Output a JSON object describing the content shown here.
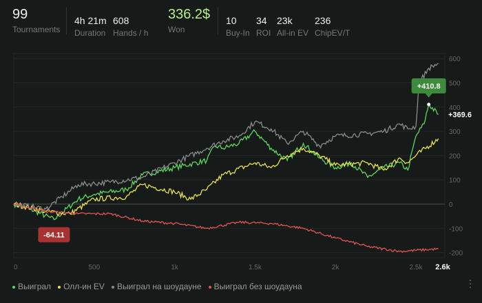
{
  "stats": [
    {
      "value": "99",
      "label": "Tournaments"
    },
    {
      "value": "4h 21m",
      "label": "Duration"
    },
    {
      "value": "608",
      "label": "Hands / h"
    },
    {
      "value": "336.2$",
      "label": "Won"
    },
    {
      "value": "10",
      "label": "Buy-In"
    },
    {
      "value": "34",
      "label": "ROI"
    },
    {
      "value": "23k",
      "label": "All-in EV"
    },
    {
      "value": "236",
      "label": "ChipEV/T"
    }
  ],
  "colors": {
    "won": "#b5f08a",
    "green": "#5fd85f",
    "yellow": "#ece44a",
    "gray": "#8c8c8c",
    "red": "#e85454",
    "tooltip": "#3d8a3d",
    "minbadge": "#a83232"
  },
  "chart_data": {
    "type": "line",
    "x_ticks": [
      "0",
      "500",
      "1k",
      "1.5k",
      "2k",
      "2.5k"
    ],
    "x_tick_values": [
      0,
      500,
      1000,
      1500,
      2000,
      2500
    ],
    "x_end_label": "2.6k",
    "y_ticks": [
      "600",
      "500",
      "400",
      "300",
      "200",
      "100",
      "0",
      "-100",
      "-200"
    ],
    "y_tick_values": [
      600,
      500,
      400,
      300,
      200,
      100,
      0,
      -100,
      -200
    ],
    "xlim": [
      0,
      2640
    ],
    "ylim": [
      -210,
      620
    ],
    "max_label": "+410.8",
    "max_point": [
      2580,
      410.8
    ],
    "min_label": "-64.11",
    "min_point": [
      250,
      -64.11
    ],
    "end_label": "+369.6",
    "series": [
      {
        "name": "Выиграл",
        "color": "#5fd85f",
        "points": [
          [
            0,
            0
          ],
          [
            100,
            -20
          ],
          [
            250,
            -64
          ],
          [
            400,
            20
          ],
          [
            500,
            40
          ],
          [
            700,
            60
          ],
          [
            800,
            120
          ],
          [
            1000,
            150
          ],
          [
            1200,
            180
          ],
          [
            1250,
            240
          ],
          [
            1300,
            230
          ],
          [
            1400,
            250
          ],
          [
            1500,
            300
          ],
          [
            1600,
            230
          ],
          [
            1700,
            180
          ],
          [
            1800,
            250
          ],
          [
            1900,
            190
          ],
          [
            2000,
            150
          ],
          [
            2100,
            170
          ],
          [
            2200,
            110
          ],
          [
            2300,
            150
          ],
          [
            2400,
            170
          ],
          [
            2450,
            140
          ],
          [
            2500,
            280
          ],
          [
            2550,
            330
          ],
          [
            2580,
            410
          ],
          [
            2640,
            370
          ]
        ]
      },
      {
        "name": "Олл-ин EV",
        "color": "#ece44a",
        "points": [
          [
            0,
            0
          ],
          [
            200,
            -30
          ],
          [
            350,
            -40
          ],
          [
            500,
            20
          ],
          [
            700,
            30
          ],
          [
            800,
            80
          ],
          [
            1000,
            50
          ],
          [
            1100,
            20
          ],
          [
            1200,
            60
          ],
          [
            1300,
            120
          ],
          [
            1500,
            170
          ],
          [
            1600,
            150
          ],
          [
            1700,
            200
          ],
          [
            1800,
            230
          ],
          [
            1900,
            200
          ],
          [
            2000,
            160
          ],
          [
            2200,
            170
          ],
          [
            2300,
            140
          ],
          [
            2400,
            190
          ],
          [
            2450,
            170
          ],
          [
            2500,
            200
          ],
          [
            2640,
            270
          ]
        ]
      },
      {
        "name": "Выиграл на шоудауне",
        "color": "#8c8c8c",
        "points": [
          [
            0,
            0
          ],
          [
            200,
            -20
          ],
          [
            300,
            30
          ],
          [
            400,
            80
          ],
          [
            600,
            90
          ],
          [
            800,
            110
          ],
          [
            1000,
            170
          ],
          [
            1200,
            230
          ],
          [
            1300,
            260
          ],
          [
            1400,
            280
          ],
          [
            1500,
            340
          ],
          [
            1600,
            310
          ],
          [
            1700,
            250
          ],
          [
            1800,
            300
          ],
          [
            1900,
            240
          ],
          [
            2000,
            280
          ],
          [
            2200,
            290
          ],
          [
            2300,
            300
          ],
          [
            2400,
            330
          ],
          [
            2450,
            310
          ],
          [
            2500,
            320
          ],
          [
            2520,
            500
          ],
          [
            2580,
            560
          ],
          [
            2640,
            580
          ]
        ]
      },
      {
        "name": "Выиграл без шоудауна",
        "color": "#e85454",
        "points": [
          [
            0,
            0
          ],
          [
            200,
            -30
          ],
          [
            400,
            -40
          ],
          [
            600,
            -40
          ],
          [
            800,
            -70
          ],
          [
            1000,
            -80
          ],
          [
            1200,
            -100
          ],
          [
            1400,
            -75
          ],
          [
            1600,
            -80
          ],
          [
            1800,
            -100
          ],
          [
            2000,
            -140
          ],
          [
            2200,
            -175
          ],
          [
            2400,
            -195
          ],
          [
            2640,
            -185
          ]
        ]
      }
    ]
  }
}
